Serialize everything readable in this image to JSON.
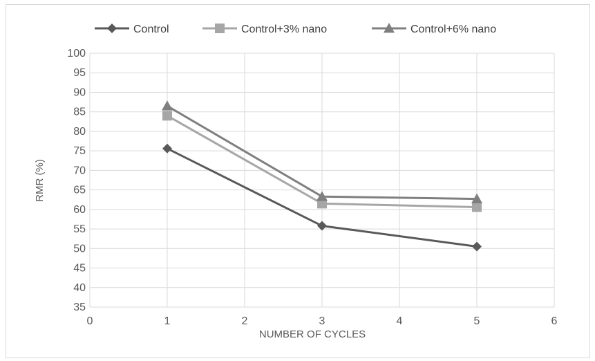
{
  "chart_data": {
    "type": "line",
    "title": "",
    "xlabel": "NUMBER OF CYCLES",
    "ylabel": "RMR (%)",
    "xlim": [
      0,
      6
    ],
    "ylim": [
      35,
      100
    ],
    "x_ticks": [
      0,
      1,
      2,
      3,
      4,
      5,
      6
    ],
    "y_ticks": [
      35,
      40,
      45,
      50,
      55,
      60,
      65,
      70,
      75,
      80,
      85,
      90,
      95,
      100
    ],
    "grid": true,
    "legend_position": "top",
    "x": [
      1,
      3,
      5
    ],
    "series": [
      {
        "name": "Control",
        "values": [
          75.6,
          55.8,
          50.5
        ],
        "color": "#595959",
        "marker": "diamond"
      },
      {
        "name": "Control+3% nano",
        "values": [
          84.0,
          61.5,
          60.6
        ],
        "color": "#a6a6a6",
        "marker": "square"
      },
      {
        "name": "Control+6% nano",
        "values": [
          86.5,
          63.3,
          62.7
        ],
        "color": "#7f7f7f",
        "marker": "triangle"
      }
    ]
  }
}
